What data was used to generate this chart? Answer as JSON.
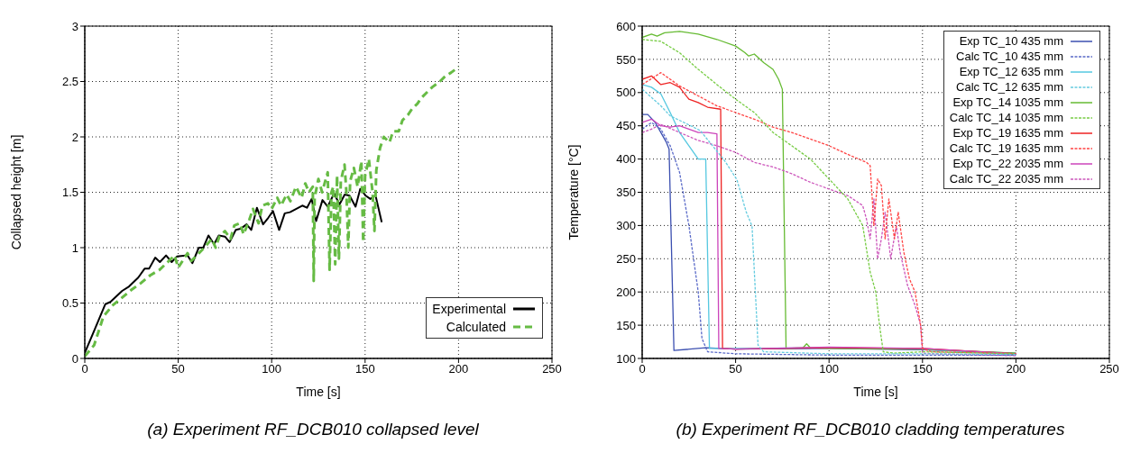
{
  "chart_data": [
    {
      "type": "line",
      "xlabel": "Time [s]",
      "ylabel": "Collapsed height [m]",
      "annotations": [
        "(a) Experiment RF_DCB010 collapsed level"
      ],
      "xlim": [
        0,
        250
      ],
      "xticks": [
        0,
        50,
        100,
        150,
        200,
        250
      ],
      "ylim": [
        0,
        3
      ],
      "yticks": [
        0,
        0.5,
        1,
        1.5,
        2,
        2.5,
        3
      ],
      "grid": true,
      "legend": "bottom right",
      "series": [
        {
          "name": "Experimental",
          "color": "#000000",
          "line_style": "solid",
          "x": [
            0,
            5.5,
            11,
            13.7,
            20,
            23.7,
            28.6,
            32,
            34.4,
            37.7,
            40.2,
            43.5,
            46.5,
            49.3,
            55,
            57.6,
            61,
            63.4,
            66.2,
            69.2,
            71.7,
            75,
            77.5,
            80.8,
            83.3,
            86.6,
            89.1,
            92.1,
            95.4,
            98.2,
            100.7,
            104,
            107,
            109.8,
            116.4,
            118.9,
            121.4,
            123.8,
            127.2,
            130,
            133.4,
            136.3,
            139.1,
            141.7,
            144.9,
            147.4,
            150.3,
            152.8,
            155.6,
            158.9
          ],
          "values": [
            0.05,
            0.27,
            0.49,
            0.51,
            0.61,
            0.65,
            0.73,
            0.81,
            0.81,
            0.91,
            0.87,
            0.93,
            0.87,
            0.92,
            0.93,
            0.86,
            1.0,
            1.0,
            1.11,
            1.03,
            1.11,
            1.1,
            1.05,
            1.16,
            1.17,
            1.21,
            1.16,
            1.36,
            1.21,
            1.27,
            1.33,
            1.16,
            1.31,
            1.32,
            1.38,
            1.36,
            1.44,
            1.24,
            1.43,
            1.37,
            1.49,
            1.39,
            1.48,
            1.47,
            1.37,
            1.53,
            1.47,
            1.44,
            1.47,
            1.23
          ]
        },
        {
          "name": "Calculated",
          "color": "#66bb44",
          "line_style": "dashed",
          "x": [
            0,
            5,
            10,
            15,
            20,
            25,
            30,
            35,
            40,
            45,
            48,
            50,
            55,
            57,
            60,
            65,
            68,
            70,
            72,
            75,
            78,
            80,
            83,
            85,
            88,
            90,
            93,
            95,
            98,
            100,
            103,
            105,
            108,
            110,
            113,
            116,
            118,
            120,
            122,
            122.5,
            123,
            125,
            127,
            130,
            131,
            132,
            133,
            134,
            135,
            136,
            137,
            139,
            140,
            141,
            142,
            144,
            146,
            148,
            149,
            150,
            152,
            154,
            155,
            156,
            158,
            160,
            163,
            165,
            168,
            170,
            173,
            175,
            178,
            180,
            183,
            186,
            190,
            193,
            196,
            200
          ],
          "values": [
            0.02,
            0.12,
            0.38,
            0.48,
            0.55,
            0.62,
            0.68,
            0.75,
            0.8,
            0.88,
            0.93,
            0.82,
            0.95,
            0.88,
            0.93,
            1.02,
            1.08,
            1.0,
            1.1,
            1.15,
            1.08,
            1.2,
            1.22,
            1.12,
            1.25,
            1.35,
            1.22,
            1.38,
            1.4,
            1.35,
            1.45,
            1.38,
            1.48,
            1.42,
            1.55,
            1.45,
            1.58,
            1.5,
            1.55,
            0.7,
            1.45,
            1.62,
            1.5,
            1.68,
            0.8,
            1.5,
            1.55,
            0.85,
            1.65,
            0.9,
            1.6,
            1.75,
            1.5,
            1.0,
            1.6,
            1.72,
            1.55,
            1.78,
            1.05,
            1.65,
            1.8,
            1.5,
            1.15,
            1.7,
            1.9,
            2.0,
            1.95,
            2.05,
            2.05,
            2.15,
            2.2,
            2.25,
            2.3,
            2.35,
            2.4,
            2.45,
            2.5,
            2.55,
            2.58,
            2.63
          ]
        }
      ]
    },
    {
      "type": "line",
      "xlabel": "Time [s]",
      "ylabel": "Temperature [°C]",
      "annotations": [
        "(b) Experiment RF_DCB010 cladding temperatures"
      ],
      "xlim": [
        0,
        250
      ],
      "xticks": [
        0,
        50,
        100,
        150,
        200,
        250
      ],
      "ylim": [
        100,
        600
      ],
      "yticks": [
        100,
        150,
        200,
        250,
        300,
        350,
        400,
        450,
        500,
        550,
        600
      ],
      "grid": true,
      "legend": "top right",
      "series": [
        {
          "name": "Exp TC_10 435 mm",
          "color": "#3b4fb0",
          "line_style": "solid",
          "x": [
            0,
            3,
            7,
            10,
            13,
            14.4,
            17,
            34,
            50,
            100,
            150,
            200
          ],
          "values": [
            467,
            467,
            455,
            440,
            425,
            415,
            112,
            116,
            114,
            115,
            113,
            108
          ]
        },
        {
          "name": "Calc TC_10 435 mm",
          "color": "#5a6ac8",
          "line_style": "dashed",
          "x": [
            0,
            5,
            10,
            15,
            20,
            25,
            30,
            32,
            35,
            50,
            100,
            150,
            200
          ],
          "values": [
            445,
            455,
            445,
            420,
            380,
            300,
            200,
            130,
            110,
            107,
            105,
            105,
            105
          ]
        },
        {
          "name": "Exp TC_12 635 mm",
          "color": "#55c8e0",
          "line_style": "solid",
          "x": [
            0,
            5,
            10,
            15,
            20,
            25,
            30,
            34,
            36,
            50,
            100,
            150,
            200
          ],
          "values": [
            512,
            508,
            498,
            470,
            440,
            420,
            400,
            400,
            115,
            115,
            116,
            114,
            106
          ]
        },
        {
          "name": "Calc TC_12 635 mm",
          "color": "#66cce0",
          "line_style": "dashed",
          "x": [
            0,
            10,
            15,
            26,
            31,
            44,
            50.7,
            55.6,
            58.8,
            62,
            65,
            100,
            150,
            200
          ],
          "values": [
            505,
            480,
            465,
            450,
            443,
            398,
            369,
            321,
            299,
            120,
            110,
            107,
            107,
            106
          ]
        },
        {
          "name": "Exp TC_14 1035 mm",
          "color": "#66bb33",
          "line_style": "solid",
          "x": [
            0,
            5,
            8,
            12,
            20,
            30,
            40,
            50,
            55,
            57,
            60,
            65,
            70,
            73,
            75,
            77,
            86,
            88,
            90,
            100,
            150,
            200
          ],
          "values": [
            583,
            588,
            585,
            590,
            592,
            588,
            580,
            570,
            560,
            555,
            558,
            545,
            535,
            520,
            505,
            115,
            116,
            122,
            116,
            115,
            114,
            108
          ]
        },
        {
          "name": "Calc TC_14 1035 mm",
          "color": "#77cc44",
          "line_style": "dashed",
          "x": [
            0,
            10,
            20,
            30,
            40,
            50,
            60,
            70,
            80,
            90,
            100,
            110,
            118,
            122,
            125,
            127,
            129,
            135,
            150,
            200
          ],
          "values": [
            580,
            577,
            560,
            535,
            512,
            490,
            470,
            440,
            420,
            400,
            370,
            340,
            300,
            230,
            200,
            150,
            110,
            108,
            110,
            107
          ]
        },
        {
          "name": "Exp TC_19 1635 mm",
          "color": "#ee2222",
          "line_style": "solid",
          "x": [
            0,
            5,
            10,
            15,
            20,
            25,
            30,
            35,
            42,
            43,
            50,
            100,
            150,
            200
          ],
          "values": [
            520,
            525,
            512,
            515,
            508,
            490,
            485,
            478,
            475,
            115,
            114,
            116,
            115,
            107
          ]
        },
        {
          "name": "Calc TC_19 1635 mm",
          "color": "#ff4444",
          "line_style": "dashed",
          "x": [
            0,
            10,
            20,
            30,
            40,
            50,
            60,
            70,
            80,
            90,
            100,
            110,
            120,
            122,
            124,
            126,
            128,
            130,
            132,
            135,
            137,
            140,
            143,
            146,
            149,
            150,
            155,
            200
          ],
          "values": [
            512,
            530,
            510,
            495,
            480,
            470,
            460,
            448,
            440,
            430,
            420,
            407,
            395,
            390,
            300,
            370,
            360,
            280,
            340,
            280,
            320,
            260,
            220,
            200,
            150,
            115,
            110,
            107
          ]
        },
        {
          "name": "Exp TC_22 2035 mm",
          "color": "#cc44bb",
          "line_style": "solid",
          "x": [
            0,
            5,
            10,
            15,
            20,
            25,
            30,
            35,
            40,
            41,
            50,
            100,
            150,
            200
          ],
          "values": [
            455,
            460,
            450,
            448,
            450,
            445,
            440,
            440,
            438,
            115,
            114,
            117,
            115,
            107
          ]
        },
        {
          "name": "Calc TC_22 2035 mm",
          "color": "#cc55bb",
          "line_style": "dashed",
          "x": [
            0,
            5,
            10,
            20,
            30,
            40,
            50,
            60,
            70,
            80,
            90,
            100,
            110,
            118,
            120,
            122,
            124,
            126,
            128,
            130,
            133,
            136,
            138,
            142,
            146,
            149,
            150,
            155,
            200
          ],
          "values": [
            440,
            445,
            452,
            440,
            428,
            420,
            410,
            395,
            388,
            378,
            365,
            355,
            345,
            330,
            310,
            280,
            340,
            250,
            280,
            320,
            250,
            300,
            260,
            210,
            180,
            150,
            108,
            107,
            104
          ]
        }
      ]
    }
  ]
}
